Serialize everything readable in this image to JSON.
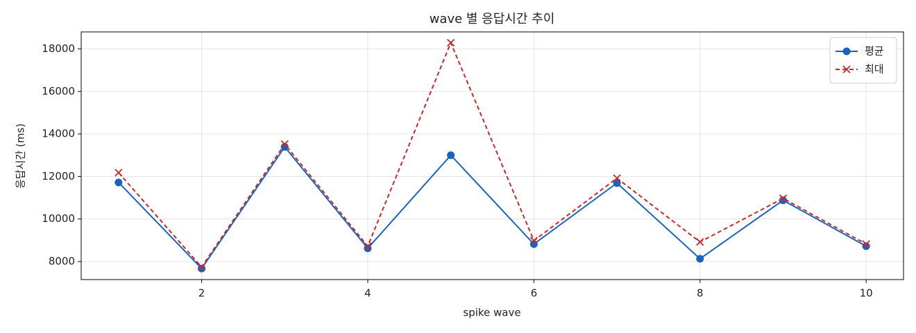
{
  "chart_data": {
    "type": "line",
    "title": "wave 별 응답시간 추이",
    "x_label": "spike wave",
    "y_label": "응답시간 (ms)",
    "x": [
      1,
      2,
      3,
      4,
      5,
      6,
      7,
      8,
      9,
      10
    ],
    "series": [
      {
        "name": "평균",
        "color": "#1565c0",
        "marker": "circle",
        "linestyle": "solid",
        "values": [
          11720,
          7670,
          13390,
          8620,
          13000,
          8820,
          11690,
          8130,
          10880,
          8720
        ]
      },
      {
        "name": "최대",
        "color": "#c62828",
        "marker": "x",
        "linestyle": "dashed",
        "values": [
          12180,
          7740,
          13520,
          8720,
          18290,
          8980,
          11920,
          8920,
          10970,
          8820
        ]
      }
    ],
    "xlim": [
      0.55,
      10.45
    ],
    "xticks": [
      2,
      4,
      6,
      8,
      10
    ],
    "ylim": [
      7150,
      18800
    ],
    "yticks": [
      8000,
      10000,
      12000,
      14000,
      16000,
      18000
    ],
    "grid": true,
    "legend": "upper right"
  }
}
